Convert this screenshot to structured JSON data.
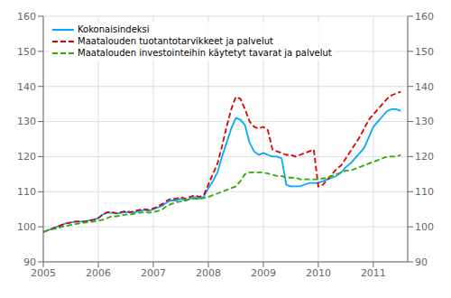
{
  "chart_data": {
    "type": "line",
    "x": [
      2005.0,
      2005.083,
      2005.167,
      2005.25,
      2005.333,
      2005.417,
      2005.5,
      2005.583,
      2005.667,
      2005.75,
      2005.833,
      2005.917,
      2006.0,
      2006.083,
      2006.167,
      2006.25,
      2006.333,
      2006.417,
      2006.5,
      2006.583,
      2006.667,
      2006.75,
      2006.833,
      2006.917,
      2007.0,
      2007.083,
      2007.167,
      2007.25,
      2007.333,
      2007.417,
      2007.5,
      2007.583,
      2007.667,
      2007.75,
      2007.833,
      2007.917,
      2008.0,
      2008.083,
      2008.167,
      2008.25,
      2008.333,
      2008.417,
      2008.5,
      2008.583,
      2008.667,
      2008.75,
      2008.833,
      2008.917,
      2009.0,
      2009.083,
      2009.167,
      2009.25,
      2009.333,
      2009.417,
      2009.5,
      2009.583,
      2009.667,
      2009.75,
      2009.833,
      2009.917,
      2010.0,
      2010.083,
      2010.167,
      2010.25,
      2010.333,
      2010.417,
      2010.5,
      2010.583,
      2010.667,
      2010.75,
      2010.833,
      2010.917,
      2011.0,
      2011.083,
      2011.167,
      2011.25,
      2011.333,
      2011.417,
      2011.5
    ],
    "series": [
      {
        "name": "Kokonaisindeksi",
        "color": "#00aaff",
        "line_style": "solid",
        "marker": "none",
        "values": [
          98.5,
          99.0,
          99.5,
          100.0,
          100.5,
          101.0,
          101.2,
          101.5,
          101.5,
          101.5,
          101.8,
          102.0,
          102.5,
          103.5,
          104.0,
          104.0,
          103.8,
          104.0,
          104.2,
          104.0,
          104.2,
          104.5,
          104.8,
          104.5,
          105.0,
          105.5,
          106.0,
          107.0,
          107.5,
          107.5,
          108.0,
          107.5,
          108.0,
          108.5,
          108.0,
          108.5,
          111.0,
          113.0,
          115.5,
          120.0,
          124.0,
          128.0,
          131.0,
          130.5,
          129.0,
          124.0,
          121.5,
          120.5,
          121.0,
          120.5,
          120.0,
          120.0,
          119.5,
          112.0,
          111.5,
          111.5,
          111.5,
          112.0,
          112.5,
          112.5,
          112.5,
          113.0,
          113.5,
          114.0,
          114.5,
          115.5,
          117.0,
          118.0,
          119.5,
          121.0,
          122.5,
          125.5,
          128.5,
          130.0,
          131.5,
          133.0,
          133.5,
          133.5,
          133.0
        ]
      },
      {
        "name": "Maatalouden tuotantotarvikkeet ja palvelut",
        "color": "#dd0000",
        "line_style": "dashed",
        "marker": "none",
        "values": [
          98.5,
          99.0,
          99.5,
          100.0,
          100.5,
          101.0,
          101.2,
          101.5,
          101.5,
          101.5,
          101.8,
          102.0,
          102.5,
          103.5,
          104.2,
          104.2,
          103.8,
          104.2,
          104.5,
          104.2,
          104.5,
          104.8,
          105.0,
          104.8,
          105.2,
          105.8,
          106.5,
          107.5,
          108.0,
          108.0,
          108.5,
          108.0,
          108.5,
          109.0,
          108.5,
          109.0,
          112.0,
          115.0,
          118.0,
          123.0,
          128.5,
          133.5,
          137.0,
          136.5,
          133.5,
          130.0,
          128.5,
          128.0,
          128.5,
          127.5,
          122.0,
          121.5,
          121.0,
          120.5,
          120.5,
          120.0,
          120.5,
          121.0,
          121.5,
          122.0,
          111.5,
          112.0,
          113.5,
          115.0,
          116.5,
          117.5,
          119.5,
          121.5,
          123.5,
          125.5,
          128.0,
          130.5,
          132.0,
          133.5,
          135.0,
          136.5,
          137.5,
          138.0,
          138.5
        ]
      },
      {
        "name": "Maatalouden investointeihin käytetyt tavarat ja palvelut",
        "color": "#33aa00",
        "line_style": "dashed",
        "marker": "none",
        "values": [
          98.5,
          99.0,
          99.3,
          99.5,
          100.0,
          100.2,
          100.5,
          100.8,
          101.0,
          101.2,
          101.3,
          101.5,
          101.8,
          102.0,
          102.5,
          103.0,
          103.0,
          103.2,
          103.5,
          103.5,
          103.8,
          104.0,
          104.2,
          104.0,
          104.2,
          104.5,
          105.0,
          106.0,
          106.5,
          107.0,
          107.2,
          107.5,
          107.8,
          108.0,
          108.0,
          108.2,
          108.5,
          109.0,
          109.5,
          110.0,
          110.5,
          111.0,
          111.5,
          113.0,
          115.0,
          115.5,
          115.5,
          115.5,
          115.5,
          115.2,
          114.8,
          114.5,
          114.5,
          114.0,
          114.0,
          114.0,
          113.5,
          113.5,
          113.5,
          113.5,
          113.5,
          113.8,
          114.0,
          114.5,
          115.0,
          115.5,
          116.0,
          116.0,
          116.5,
          117.0,
          117.5,
          118.0,
          118.5,
          119.0,
          119.5,
          120.0,
          120.0,
          120.0,
          120.5
        ]
      }
    ],
    "xlim": [
      2005.0,
      2011.625
    ],
    "xticks": [
      2005,
      2006,
      2007,
      2008,
      2009,
      2010,
      2011
    ],
    "ylim": [
      90,
      160
    ],
    "yticks": [
      90,
      100,
      110,
      120,
      130,
      140,
      150,
      160
    ],
    "y2lim": [
      90,
      160
    ],
    "y2ticks": [
      90,
      100,
      110,
      120,
      130,
      140,
      150,
      160
    ],
    "grid": true,
    "legend": "upper left"
  }
}
